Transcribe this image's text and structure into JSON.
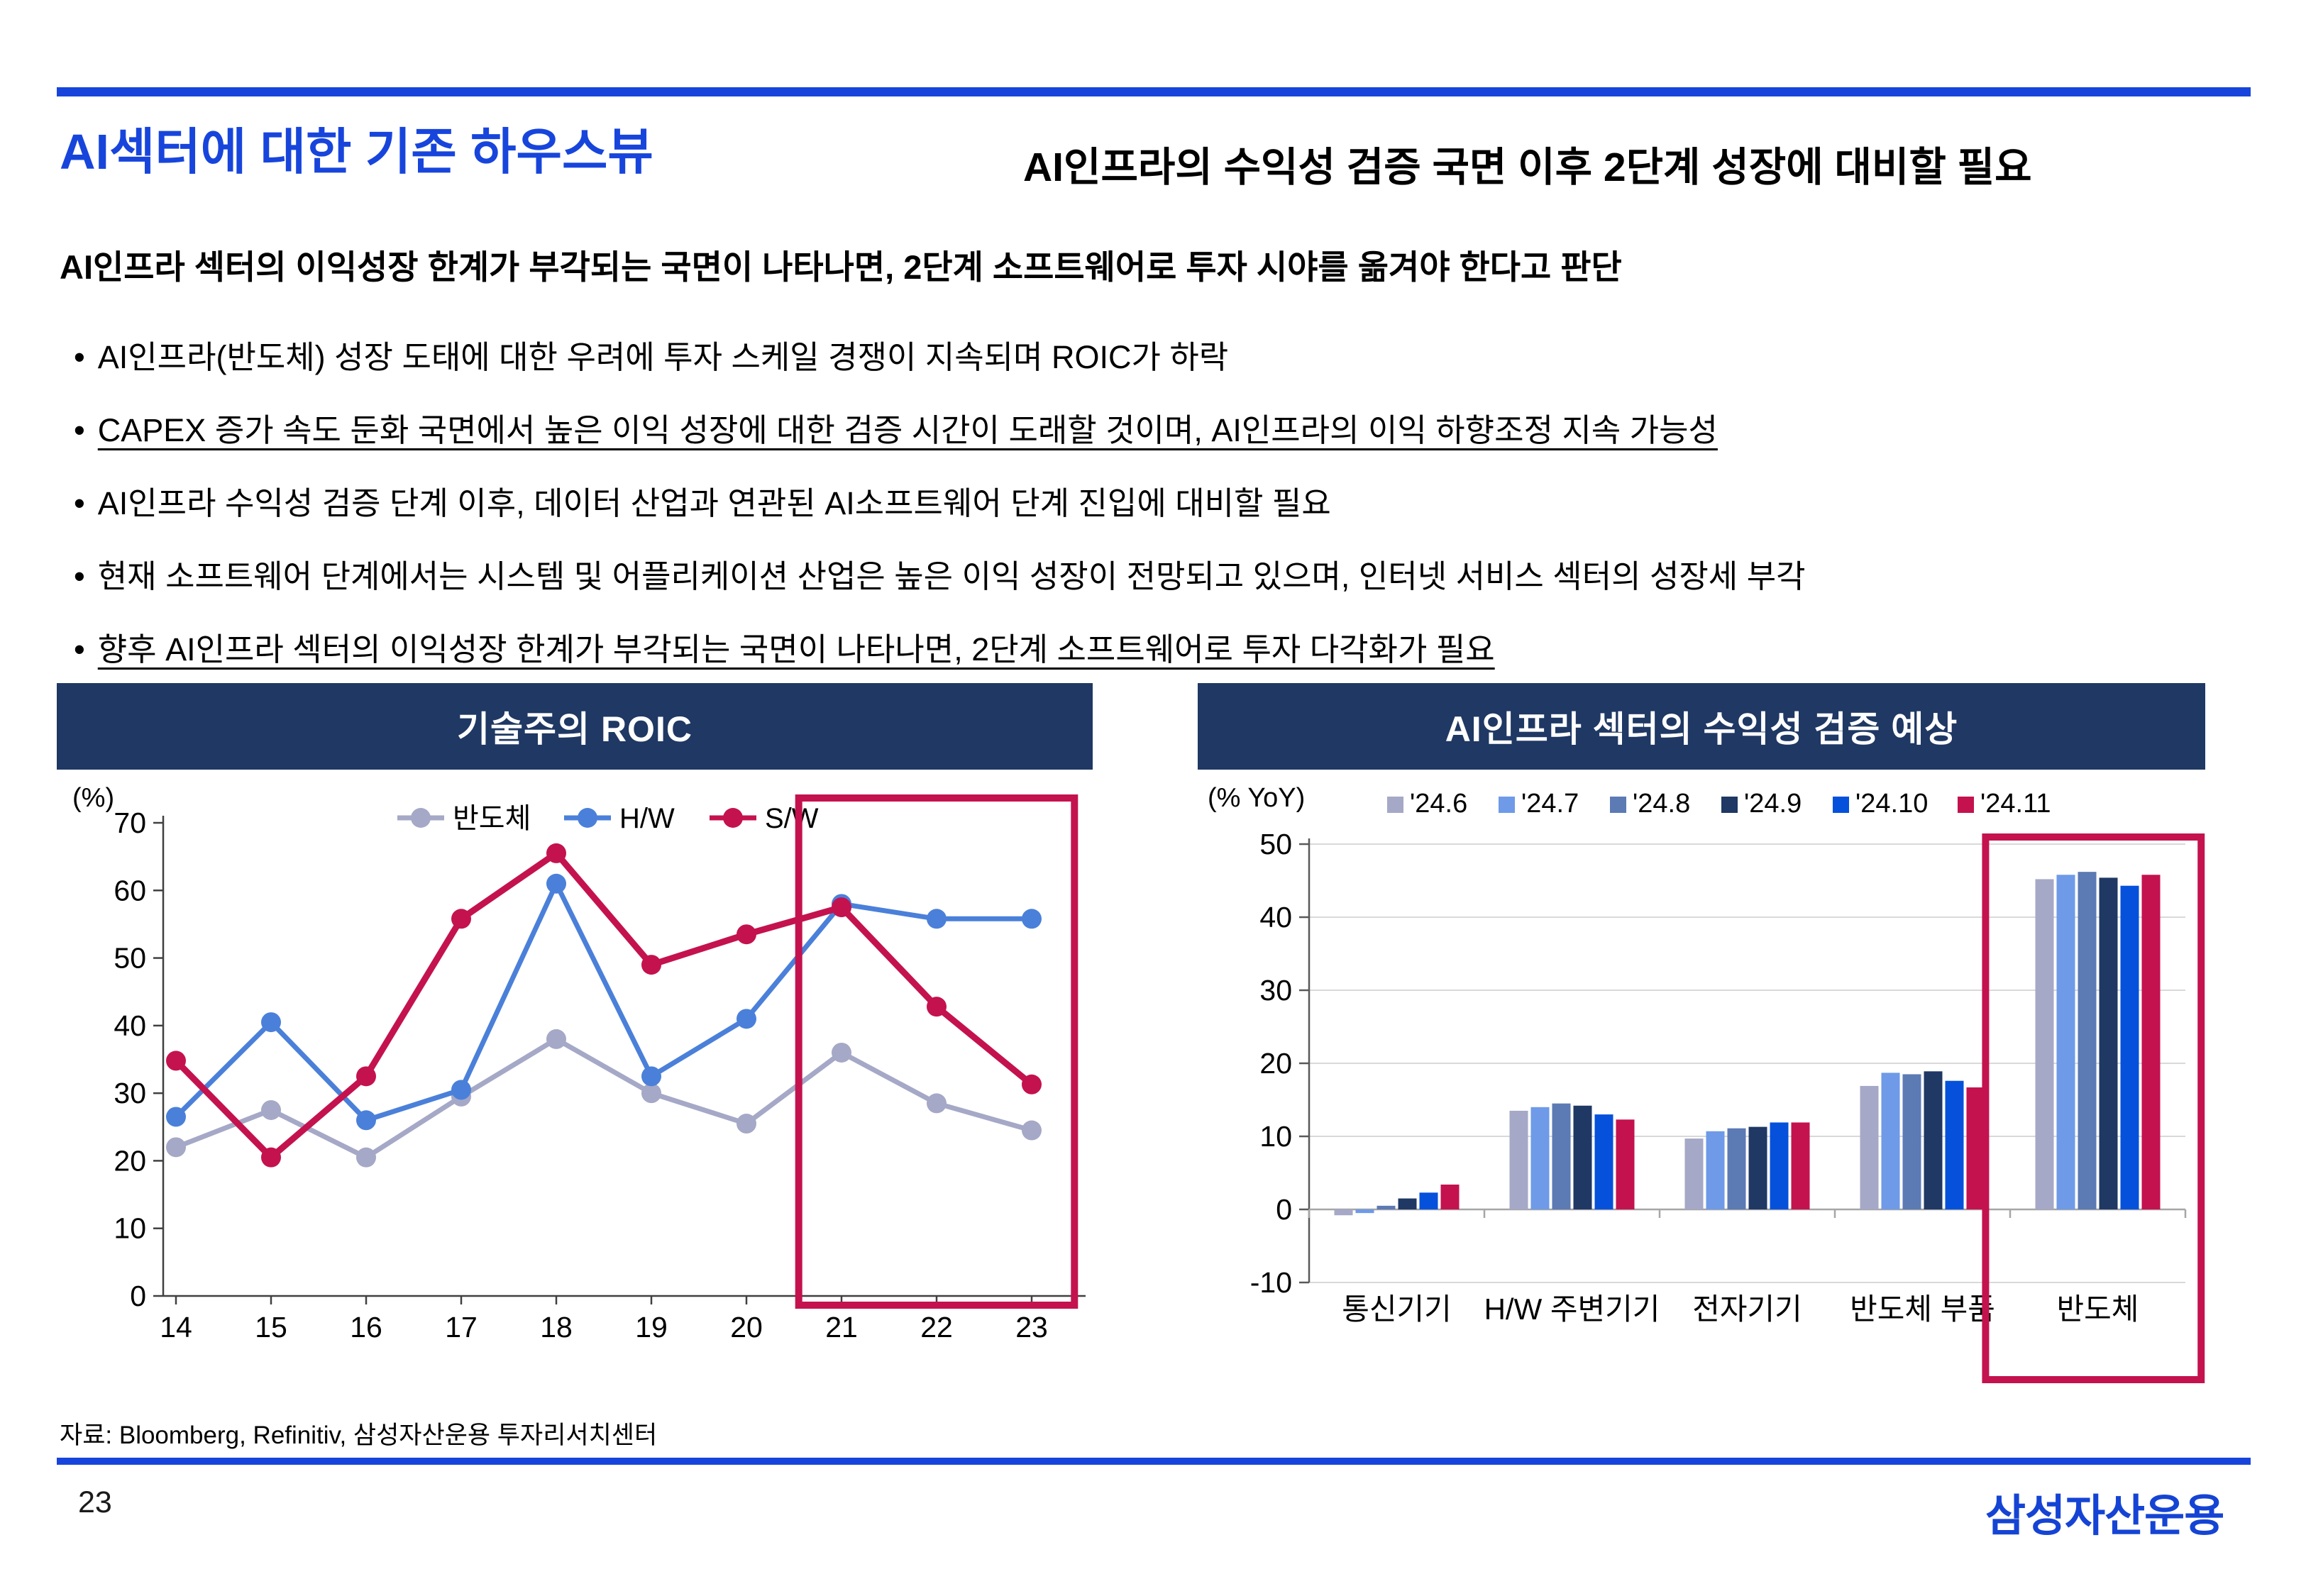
{
  "page": {
    "number": "23",
    "logo": "삼성자산운용"
  },
  "header": {
    "title": "AI섹터에 대한 기존 하우스뷰",
    "subtitle": "AI인프라의 수익성 검증 국면 이후 2단계 성장에 대비할 필요"
  },
  "body": {
    "lead": "AI인프라 섹터의 이익성장 한계가 부각되는 국면이 나타나면, 2단계 소프트웨어로 투자 시야를 옮겨야 한다고 판단",
    "bullets": [
      {
        "text": "AI인프라(반도체) 성장 도태에 대한 우려에 투자 스케일 경쟁이 지속되며 ROIC가 하락",
        "underline": false
      },
      {
        "text": "CAPEX 증가 속도 둔화 국면에서 높은 이익 성장에 대한 검증 시간이 도래할 것이며, AI인프라의 이익 하향조정 지속 가능성",
        "underline": true
      },
      {
        "text": "AI인프라 수익성 검증 단계 이후, 데이터 산업과 연관된 AI소프트웨어 단계 진입에 대비할 필요",
        "underline": false
      },
      {
        "text": "현재 소프트웨어 단계에서는 시스템 및 어플리케이션 산업은 높은 이익 성장이 전망되고 있으며, 인터넷 서비스 섹터의 성장세 부각",
        "underline": false
      },
      {
        "text": "향후 AI인프라 섹터의 이익성장 한계가 부각되는 국면이 나타나면, 2단계 소프트웨어로 투자 다각화가 필요",
        "underline": true
      }
    ]
  },
  "footer": {
    "source": "자료: Bloomberg, Refinitiv, 삼성자산운용 투자리서치센터"
  },
  "colors": {
    "accent_blue": "#1745DC",
    "navy": "#1F3864",
    "crimson": "#C4124F",
    "grid": "#D9D9D9",
    "axis_dark": "#404040",
    "axis_gray": "#A6A6A6"
  },
  "chart_data": [
    {
      "type": "line",
      "title": "기술주의 ROIC",
      "unit_label": "(%)",
      "x": [
        14,
        15,
        16,
        17,
        18,
        19,
        20,
        21,
        22,
        23
      ],
      "series": [
        {
          "name": "반도체",
          "color": "#A5A8C6",
          "values": [
            22,
            27.5,
            20.5,
            29.5,
            38,
            30,
            25.5,
            36,
            28.5,
            24.5
          ]
        },
        {
          "name": "H/W",
          "color": "#4A80D9",
          "values": [
            26.5,
            40.5,
            26,
            30.5,
            61,
            32.5,
            41,
            58,
            55.8,
            55.8
          ]
        },
        {
          "name": "S/W",
          "color": "#C4124F",
          "values": [
            34.8,
            20.5,
            32.5,
            55.8,
            65.5,
            49,
            53.5,
            57.5,
            42.8,
            31.3
          ]
        }
      ],
      "ylim": [
        0,
        70
      ],
      "yticks": [
        0,
        10,
        20,
        30,
        40,
        50,
        60,
        70
      ],
      "grid": false,
      "legend_position": "top",
      "highlight_box": {
        "x_from": 20.55,
        "x_to": 23.45,
        "note": "years 21-23 highlighted"
      }
    },
    {
      "type": "bar",
      "title": "AI인프라 섹터의 수익성 검증 예상",
      "unit_label": "(% YoY)",
      "categories": [
        "통신기기",
        "H/W 주변기기",
        "전자기기",
        "반도체 부품",
        "반도체"
      ],
      "series": [
        {
          "name": "'24.6",
          "color": "#A5A8C6",
          "values": [
            -0.8,
            13.5,
            9.7,
            16.9,
            45.2
          ]
        },
        {
          "name": "'24.7",
          "color": "#6E9AE8",
          "values": [
            -0.5,
            14.0,
            10.7,
            18.7,
            45.8
          ]
        },
        {
          "name": "'24.8",
          "color": "#5C7AB4",
          "values": [
            0.5,
            14.5,
            11.1,
            18.5,
            46.2
          ]
        },
        {
          "name": "'24.9",
          "color": "#1F3864",
          "values": [
            1.5,
            14.2,
            11.3,
            18.9,
            45.4
          ]
        },
        {
          "name": "'24.10",
          "color": "#0551DB",
          "values": [
            2.3,
            13.0,
            11.9,
            17.6,
            44.3
          ]
        },
        {
          "name": "'24.11",
          "color": "#C4124F",
          "values": [
            3.4,
            12.3,
            11.9,
            16.7,
            45.8
          ]
        }
      ],
      "ylim": [
        -10,
        50
      ],
      "yticks": [
        -10,
        0,
        10,
        20,
        30,
        40,
        50
      ],
      "grid": true,
      "legend_position": "top",
      "highlight_category": "반도체"
    }
  ]
}
